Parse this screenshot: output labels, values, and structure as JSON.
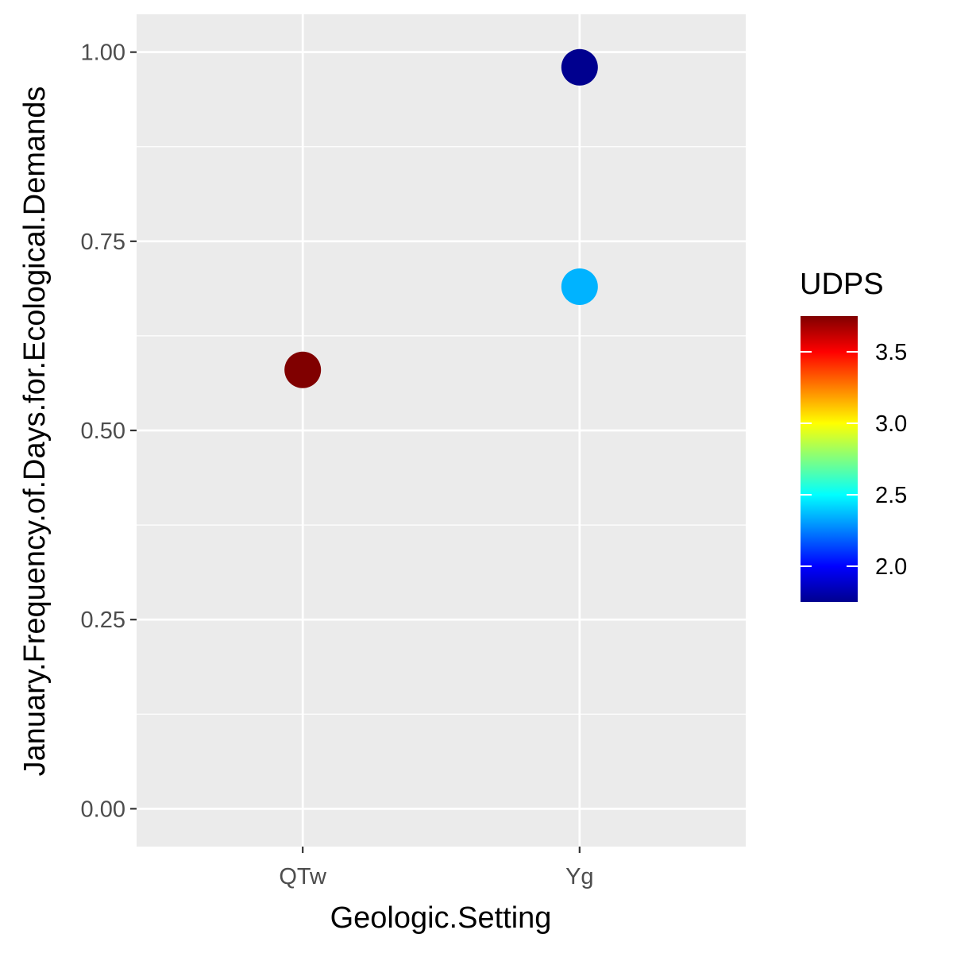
{
  "chart_data": {
    "type": "scatter",
    "title": "",
    "xlabel": "Geologic.Setting",
    "ylabel": "January.Frequency.of.Days.for.Ecological.Demands",
    "categories": [
      "QTw",
      "Yg"
    ],
    "ylim": [
      -0.05,
      1.05
    ],
    "yticks": [
      "0.00",
      "0.25",
      "0.50",
      "0.75",
      "1.00"
    ],
    "grid": true,
    "panel_color": "#ebebeb",
    "points": [
      {
        "x": "QTw",
        "y": 0.58,
        "udps": 3.75
      },
      {
        "x": "Yg",
        "y": 0.98,
        "udps": 1.75
      },
      {
        "x": "Yg",
        "y": 0.69,
        "udps": 2.35
      }
    ],
    "legend": {
      "title": "UDPS",
      "position": "right",
      "range": [
        1.75,
        3.75
      ],
      "breaks": [
        2.0,
        2.5,
        3.0,
        3.5
      ],
      "labels": [
        "2.0",
        "2.5",
        "3.0",
        "3.5"
      ],
      "colors": [
        "#00008f",
        "#0000ff",
        "#0080ff",
        "#00ffff",
        "#80ff80",
        "#ffff00",
        "#ff8000",
        "#ff0000",
        "#800000"
      ]
    }
  }
}
